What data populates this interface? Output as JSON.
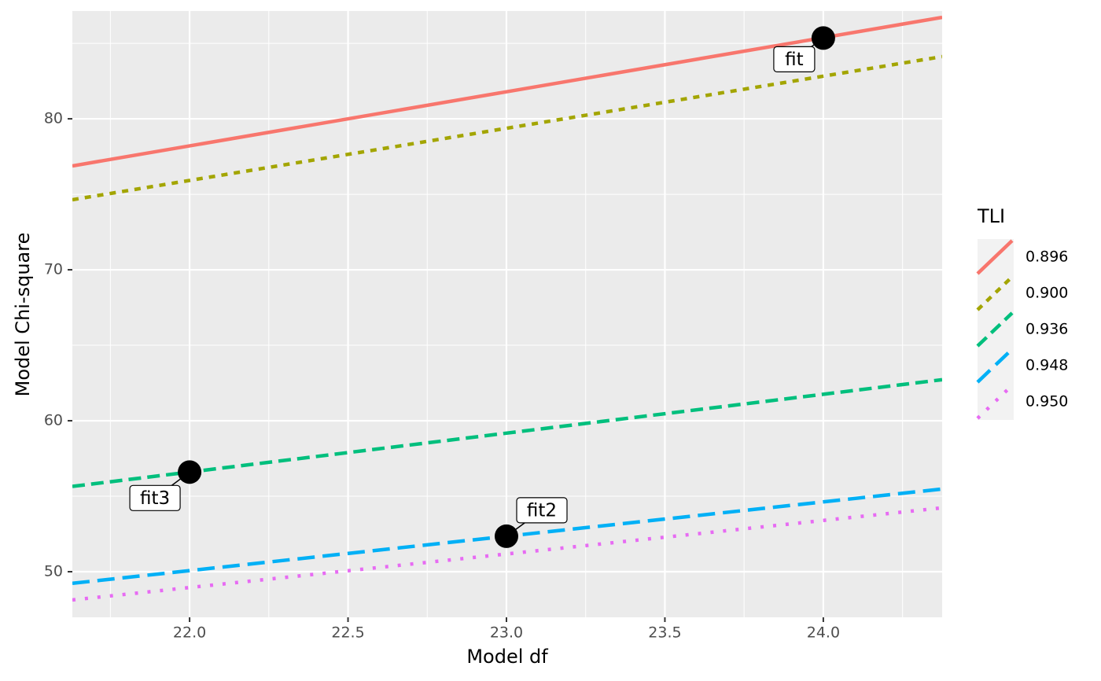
{
  "chart_data": {
    "type": "line",
    "x_label": "Model df",
    "y_label": "Model Chi-square",
    "legend_title": "TLI",
    "legend_position": "right",
    "xlim": [
      21.63,
      24.375
    ],
    "ylim": [
      46.98,
      87.14
    ],
    "xticks": [
      {
        "value": 22,
        "label": "22.0"
      },
      {
        "value": 22.5,
        "label": "22.5"
      },
      {
        "value": 23,
        "label": "23.0"
      },
      {
        "value": 23.5,
        "label": "23.5"
      },
      {
        "value": 24,
        "label": "24.0"
      }
    ],
    "xminor": [
      21.75,
      22.25,
      22.75,
      23.25,
      23.75,
      24.25
    ],
    "yticks": [
      50,
      60,
      70,
      80
    ],
    "yminor": [
      55,
      65,
      75,
      85
    ],
    "grid": true,
    "x": [
      21.63,
      24.375
    ],
    "series": [
      {
        "name": "0.896",
        "color": "#f8766d",
        "linetype": "solid",
        "values": [
          76.88,
          86.72
        ]
      },
      {
        "name": "0.900",
        "color": "#a3a500",
        "linetype": "dotted-dash",
        "values": [
          74.64,
          84.12
        ]
      },
      {
        "name": "0.936",
        "color": "#00bf7d",
        "linetype": "dashed",
        "values": [
          55.65,
          62.72
        ]
      },
      {
        "name": "0.948",
        "color": "#00b0f6",
        "linetype": "longdash",
        "values": [
          49.23,
          55.48
        ]
      },
      {
        "name": "0.950",
        "color": "#e76bf3",
        "linetype": "dotted",
        "values": [
          48.13,
          54.23
        ]
      }
    ],
    "points": [
      {
        "label": "fit",
        "x": 24,
        "y": 85.35
      },
      {
        "label": "fit2",
        "x": 23,
        "y": 52.35
      },
      {
        "label": "fit3",
        "x": 22,
        "y": 56.6
      }
    ]
  }
}
